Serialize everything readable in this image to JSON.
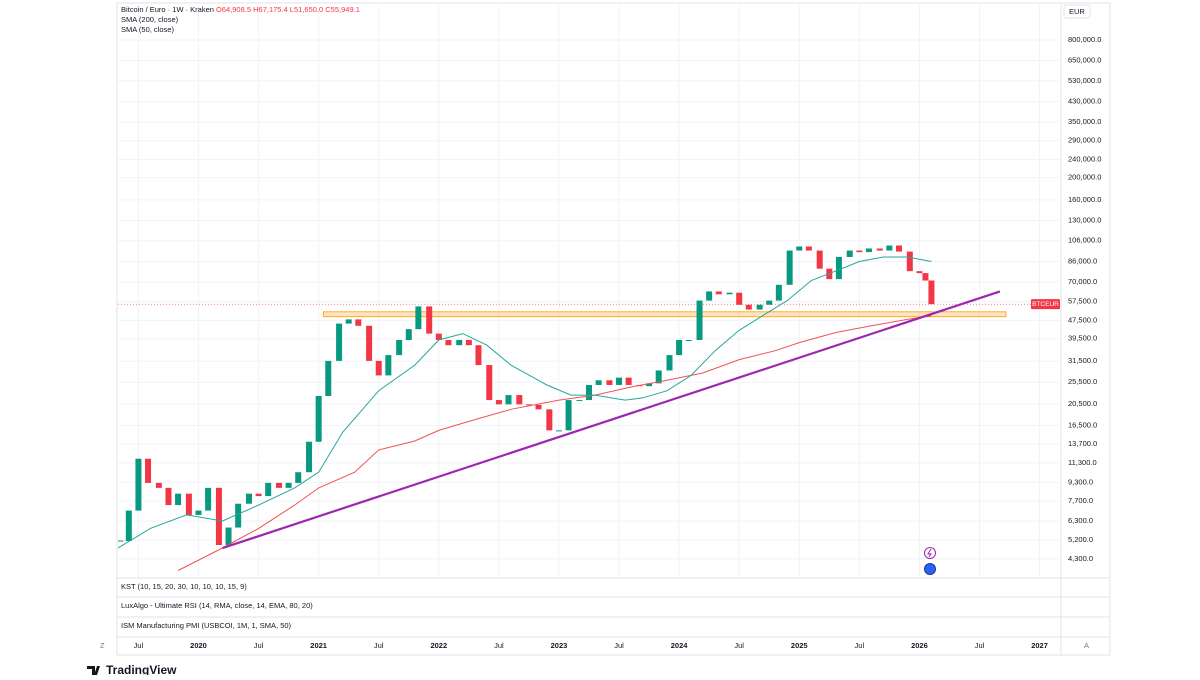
{
  "chart_data": {
    "type": "candlestick",
    "title": "Bitcoin / Euro · 1W · Kraken",
    "ohlc_text": "O64,908.5 H67,175.4 L51,650.0 C55,949.1",
    "currency": "EUR",
    "indicators": [
      "KST (10, 15, 20, 30, 10, 10, 10, 15, 9)",
      "LuxAlgo - Ultimate RSI (14, RMA, close, 14, EMA, 80, 20)",
      "ISM Manufacturing PMI (USBCOI, 1M, 1, SMA, 50)"
    ],
    "axis_edge_labels": [
      "Z",
      "A"
    ],
    "brand": "TradingView",
    "log_scale": true,
    "grid": true,
    "xlim": [
      2019.33,
      2027.17
    ],
    "xticks": [
      {
        "value": 2019.5,
        "label": "Jul"
      },
      2020,
      {
        "value": 2020.5,
        "label": "Jul"
      },
      2021,
      {
        "value": 2021.5,
        "label": "Jul"
      },
      2022,
      {
        "value": 2022.5,
        "label": "Jul"
      },
      2023,
      {
        "value": 2023.5,
        "label": "Jul"
      },
      2024,
      {
        "value": 2024.5,
        "label": "Jul"
      },
      2025,
      {
        "value": 2025.5,
        "label": "Jul"
      },
      2026,
      {
        "value": 2026.5,
        "label": "Jul"
      },
      2027
    ],
    "ylim": [
      3550,
      1138000
    ],
    "yticks": [
      {
        "value": 4300,
        "label": "4,300.0"
      },
      {
        "value": 5200,
        "label": "5,200.0"
      },
      {
        "value": 6300,
        "label": "6,300.0"
      },
      {
        "value": 7700,
        "label": "7,700.0"
      },
      {
        "value": 9300,
        "label": "9,300.0"
      },
      {
        "value": 11300,
        "label": "11,300.0"
      },
      {
        "value": 13700,
        "label": "13,700.0"
      },
      {
        "value": 16500,
        "label": "16,500.0"
      },
      {
        "value": 20500,
        "label": "20,500.0"
      },
      {
        "value": 25500,
        "label": "25,500.0"
      },
      {
        "value": 31500,
        "label": "31,500.0"
      },
      {
        "value": 39500,
        "label": "39,500.0"
      },
      {
        "value": 47500,
        "label": "47,500.0"
      },
      {
        "value": 57500,
        "label": "57,500.0"
      },
      {
        "value": 70000,
        "label": "70,000.0"
      },
      {
        "value": 86000,
        "label": "86,000.0"
      },
      {
        "value": 106000,
        "label": "106,000.0"
      },
      {
        "value": 130000,
        "label": "130,000.0"
      },
      {
        "value": 160000,
        "label": "160,000.0"
      },
      {
        "value": 200000,
        "label": "200,000.0"
      },
      {
        "value": 240000,
        "label": "240,000.0"
      },
      {
        "value": 290000,
        "label": "290,000.0"
      },
      {
        "value": 350000,
        "label": "350,000.0"
      },
      {
        "value": 430000,
        "label": "430,000.0"
      },
      {
        "value": 530000,
        "label": "530,000.0"
      },
      {
        "value": 650000,
        "label": "650,000.0"
      },
      {
        "value": 800000,
        "label": "800,000.0"
      }
    ],
    "series": [
      {
        "name": "BTCEUR",
        "color": "#f23645",
        "up_color": "#089981",
        "down_color": "#f23645",
        "x": [
          2019.35,
          2019.42,
          2019.5,
          2019.58,
          2019.67,
          2019.75,
          2019.83,
          2019.92,
          2020.0,
          2020.08,
          2020.17,
          2020.25,
          2020.33,
          2020.42,
          2020.5,
          2020.58,
          2020.67,
          2020.75,
          2020.83,
          2020.92,
          2021.0,
          2021.08,
          2021.17,
          2021.25,
          2021.33,
          2021.42,
          2021.5,
          2021.58,
          2021.67,
          2021.75,
          2021.83,
          2021.92,
          2022.0,
          2022.08,
          2022.17,
          2022.25,
          2022.33,
          2022.42,
          2022.5,
          2022.58,
          2022.67,
          2022.75,
          2022.83,
          2022.92,
          2023.0,
          2023.08,
          2023.17,
          2023.25,
          2023.33,
          2023.42,
          2023.5,
          2023.58,
          2023.67,
          2023.75,
          2023.83,
          2023.92,
          2024.0,
          2024.08,
          2024.17,
          2024.25,
          2024.33,
          2024.42,
          2024.5,
          2024.58,
          2024.67,
          2024.75,
          2024.83,
          2024.92,
          2025.0,
          2025.08,
          2025.17,
          2025.25,
          2025.33,
          2025.42,
          2025.5,
          2025.58,
          2025.67,
          2025.75,
          2025.83,
          2025.92,
          2026.0,
          2026.05,
          2026.1
        ],
        "values": [
          5150,
          7000,
          11800,
          9250,
          8800,
          7400,
          8300,
          6700,
          7000,
          8800,
          4950,
          5900,
          7500,
          8300,
          8100,
          9250,
          8800,
          9250,
          10300,
          14000,
          22200,
          31600,
          46000,
          48000,
          45000,
          31600,
          27300,
          33500,
          39000,
          43500,
          54700,
          41600,
          39000,
          37000,
          39000,
          37000,
          30300,
          21300,
          20400,
          22400,
          20400,
          20300,
          19400,
          15700,
          15700,
          21300,
          21300,
          24800,
          26000,
          24800,
          26700,
          24800,
          24500,
          25200,
          28700,
          33500,
          39000,
          39000,
          58000,
          63600,
          61800,
          62800,
          55600,
          53000,
          55600,
          58000,
          68000,
          96000,
          100000,
          96000,
          80000,
          72000,
          90000,
          96000,
          94500,
          98000,
          96000,
          101000,
          95000,
          78000,
          76500,
          71000,
          55949.1
        ]
      },
      {
        "name": "SMA (200, close)",
        "color": "#ef5350",
        "x": [
          2019.83,
          2020.2,
          2020.5,
          2020.8,
          2021.0,
          2021.3,
          2021.5,
          2021.8,
          2022.0,
          2022.3,
          2022.6,
          2023.0,
          2023.3,
          2023.6,
          2023.9,
          2024.2,
          2024.5,
          2024.8,
          2025.0,
          2025.3,
          2025.6,
          2025.9,
          2026.1
        ],
        "values": [
          3830,
          4800,
          5850,
          7400,
          8800,
          10300,
          12900,
          14100,
          15700,
          17500,
          19400,
          21300,
          22400,
          24300,
          26000,
          28000,
          32000,
          35000,
          38000,
          42000,
          45000,
          48000,
          49700
        ]
      },
      {
        "name": "SMA (50, close)",
        "color": "#26a69a",
        "x": [
          2019.33,
          2019.6,
          2019.9,
          2020.2,
          2020.5,
          2020.8,
          2021.0,
          2021.2,
          2021.5,
          2021.8,
          2022.0,
          2022.2,
          2022.4,
          2022.6,
          2022.9,
          2023.1,
          2023.3,
          2023.55,
          2023.7,
          2023.9,
          2024.1,
          2024.3,
          2024.5,
          2024.7,
          2024.9,
          2025.1,
          2025.3,
          2025.5,
          2025.7,
          2025.9,
          2026.1
        ],
        "values": [
          4800,
          5850,
          6700,
          6300,
          7400,
          8800,
          10300,
          15400,
          23400,
          30300,
          39000,
          41600,
          37000,
          30300,
          24800,
          22400,
          22400,
          21300,
          21800,
          23400,
          27300,
          35000,
          43000,
          50000,
          58000,
          71000,
          78000,
          86000,
          90000,
          90000,
          86000
        ]
      }
    ],
    "trendline": {
      "color": "#9c27b0",
      "x": [
        2020.2,
        2026.67
      ],
      "values": [
        4800,
        63600
      ]
    },
    "zone": {
      "color": "#ff9800",
      "x": [
        2021.04,
        2026.72
      ],
      "values": [
        49300,
        51800
      ]
    }
  }
}
